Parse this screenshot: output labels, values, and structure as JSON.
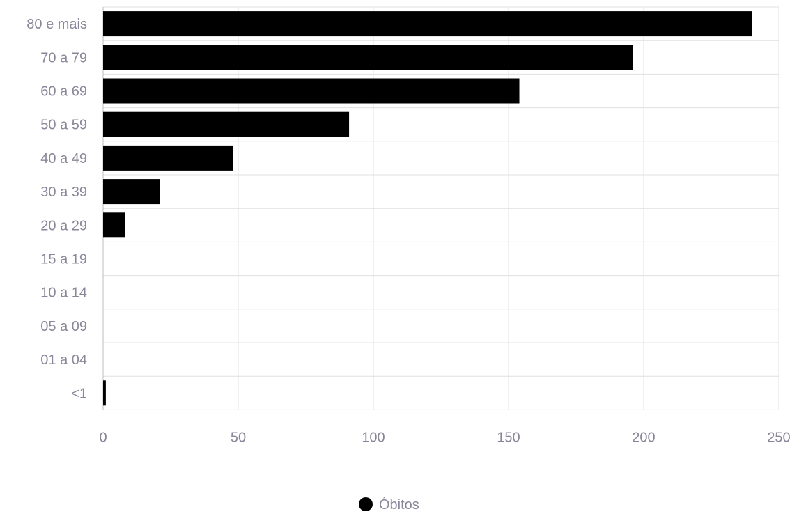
{
  "chart_data": {
    "type": "bar",
    "orientation": "horizontal",
    "categories": [
      "80 e mais",
      "70 a 79",
      "60 a 69",
      "50 a 59",
      "40 a 49",
      "30 a 39",
      "20 a 29",
      "15 a 19",
      "10 a 14",
      "05 a 09",
      "01 a 04",
      "<1"
    ],
    "series": [
      {
        "name": "Óbitos",
        "values": [
          240,
          196,
          154,
          91,
          48,
          21,
          8,
          0,
          0,
          0,
          0,
          1
        ],
        "color": "#000000"
      }
    ],
    "xlim": [
      0,
      250
    ],
    "xticks": [
      0,
      50,
      100,
      150,
      200,
      250
    ],
    "grid": true,
    "grid_color": "#e0e0e0",
    "label_color": "#8a8699",
    "legend_position": "bottom-center"
  }
}
